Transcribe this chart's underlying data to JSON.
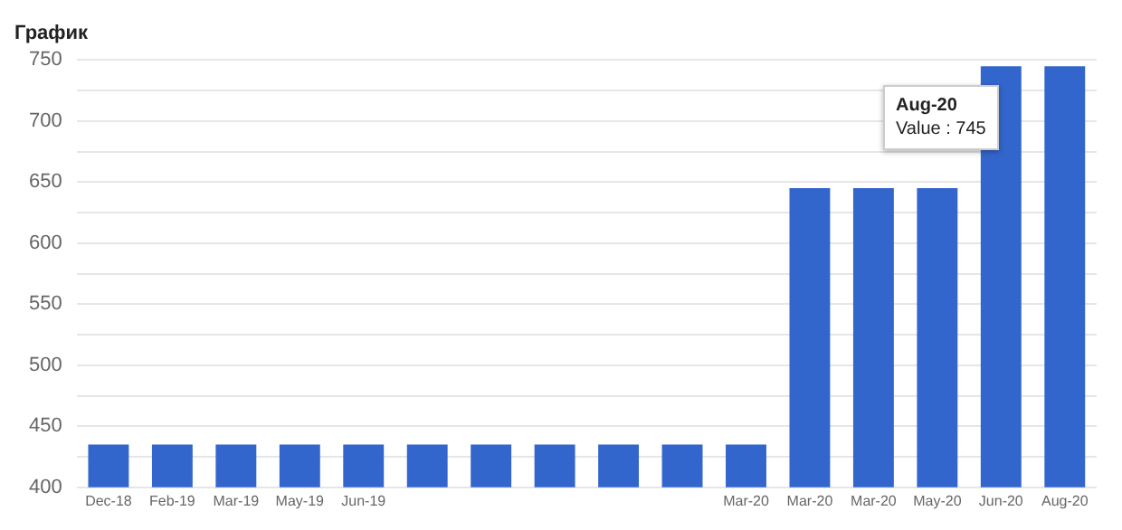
{
  "chart_data": {
    "type": "bar",
    "title": "График",
    "categories": [
      "Dec-18",
      "Feb-19",
      "Mar-19",
      "May-19",
      "Jun-19",
      null,
      null,
      null,
      null,
      null,
      "Mar-20",
      "Mar-20",
      "Mar-20",
      "May-20",
      "Jun-20",
      "Aug-20"
    ],
    "values": [
      435,
      435,
      435,
      435,
      435,
      435,
      435,
      435,
      435,
      435,
      435,
      645,
      645,
      645,
      745,
      745
    ],
    "color": "#3366cc",
    "ylim": [
      400,
      750
    ],
    "yticks": [
      400,
      {
        "value": 425,
        "label": null
      },
      450,
      {
        "value": 475,
        "label": null
      },
      500,
      {
        "value": 525,
        "label": null
      },
      550,
      {
        "value": 575,
        "label": null
      },
      600,
      {
        "value": 625,
        "label": null
      },
      650,
      {
        "value": 675,
        "label": null
      },
      700,
      {
        "value": 725,
        "label": null
      },
      750
    ],
    "grid": "y",
    "legend": false,
    "annotations": [
      "Aug-20\nValue : 745"
    ]
  }
}
